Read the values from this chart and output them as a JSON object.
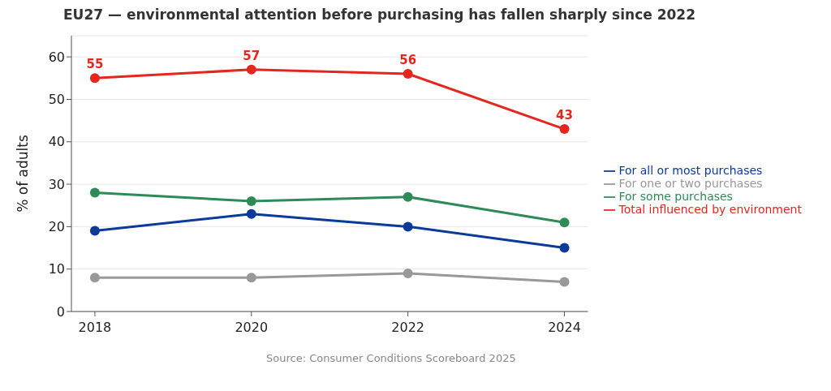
{
  "chart_data": {
    "type": "line",
    "title": "EU27 — environmental attention before purchasing has fallen sharply since 2022",
    "ylabel": "% of adults",
    "x": [
      2018,
      2020,
      2022,
      2024
    ],
    "series": [
      {
        "name": "Total influenced by environment",
        "color": "#e3261e",
        "values": [
          55,
          57,
          56,
          43
        ],
        "value_labels": [
          "55",
          "57",
          "56",
          "43"
        ]
      },
      {
        "name": "For all or most purchases",
        "color": "#0a3a9a",
        "values": [
          19,
          23,
          20,
          15
        ]
      },
      {
        "name": "For some purchases",
        "color": "#2e8b57",
        "values": [
          28,
          26,
          27,
          21
        ]
      },
      {
        "name": "For one or two purchases",
        "color": "#999999",
        "values": [
          8,
          8,
          9,
          7
        ]
      }
    ],
    "xlim": [
      2017.7,
      2024.3
    ],
    "xticks": [
      2018,
      2020,
      2022,
      2024
    ],
    "ylim": [
      0,
      65
    ],
    "yticks": [
      0,
      10,
      20,
      30,
      40,
      50,
      60
    ],
    "grid": "y",
    "legend": "right",
    "marker": "circle",
    "line_style": "solid",
    "annotations": [
      "Source: Consumer Conditions Scoreboard 2025"
    ]
  }
}
